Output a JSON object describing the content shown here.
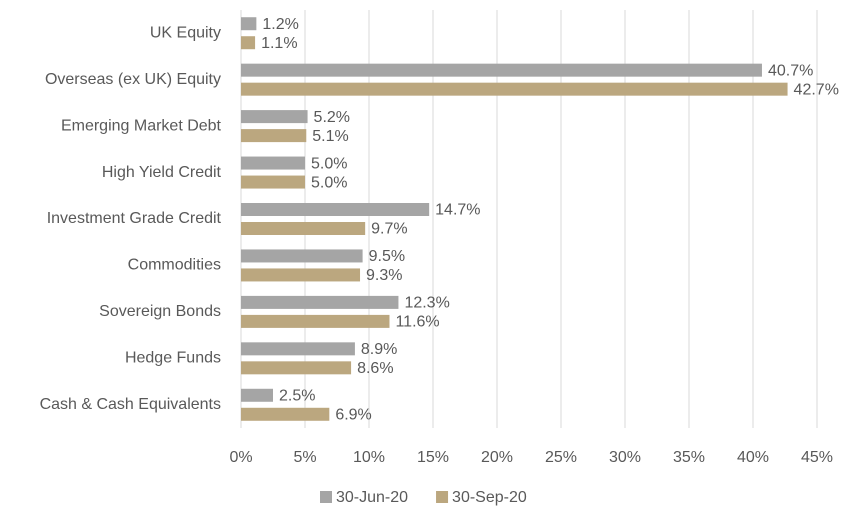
{
  "chart_data": {
    "type": "bar",
    "orientation": "horizontal",
    "categories": [
      "UK Equity",
      "Overseas (ex UK) Equity",
      "Emerging Market Debt",
      "High Yield Credit",
      "Investment Grade Credit",
      "Commodities",
      "Sovereign Bonds",
      "Hedge Funds",
      "Cash & Cash Equivalents"
    ],
    "series": [
      {
        "name": "30-Jun-20",
        "color": "#a5a5a5",
        "values": [
          1.2,
          40.7,
          5.2,
          5.0,
          14.7,
          9.5,
          12.3,
          8.9,
          2.5
        ],
        "value_labels": [
          "1.2%",
          "40.7%",
          "5.2%",
          "5.0%",
          "14.7%",
          "9.5%",
          "12.3%",
          "8.9%",
          "2.5%"
        ]
      },
      {
        "name": "30-Sep-20",
        "color": "#bba77f",
        "values": [
          1.1,
          42.7,
          5.1,
          5.0,
          9.7,
          9.3,
          11.6,
          8.6,
          6.9
        ],
        "value_labels": [
          "1.1%",
          "42.7%",
          "5.1%",
          "5.0%",
          "9.7%",
          "9.3%",
          "11.6%",
          "8.6%",
          "6.9%"
        ]
      }
    ],
    "xlim": [
      0,
      45
    ],
    "xticks": [
      {
        "value": 0,
        "label": "0%"
      },
      {
        "value": 5,
        "label": "5%"
      },
      {
        "value": 10,
        "label": "10%"
      },
      {
        "value": 15,
        "label": "15%"
      },
      {
        "value": 20,
        "label": "20%"
      },
      {
        "value": 25,
        "label": "25%"
      },
      {
        "value": 30,
        "label": "30%"
      },
      {
        "value": 35,
        "label": "35%"
      },
      {
        "value": 40,
        "label": "40%"
      },
      {
        "value": 45,
        "label": "45%"
      }
    ],
    "grid": true,
    "legend": "bottom"
  }
}
